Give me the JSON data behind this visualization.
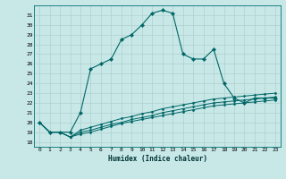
{
  "xlabel": "Humidex (Indice chaleur)",
  "bg_color": "#c8e8e8",
  "grid_color": "#b0d0d0",
  "line_color": "#006666",
  "xlim": [
    -0.5,
    23.5
  ],
  "ylim": [
    17.5,
    32
  ],
  "yticks": [
    18,
    19,
    20,
    21,
    22,
    23,
    24,
    25,
    26,
    27,
    28,
    29,
    30,
    31
  ],
  "xticks": [
    0,
    1,
    2,
    3,
    4,
    5,
    6,
    7,
    8,
    9,
    10,
    11,
    12,
    13,
    14,
    15,
    16,
    17,
    18,
    19,
    20,
    21,
    22,
    23
  ],
  "series_main": {
    "x": [
      0,
      1,
      2,
      3,
      4,
      5,
      6,
      7,
      8,
      9,
      10,
      11,
      12,
      13,
      14,
      15,
      16,
      17,
      18,
      19,
      20,
      21,
      22,
      23
    ],
    "y": [
      20.0,
      19.0,
      19.0,
      19.0,
      21.0,
      25.5,
      26.0,
      26.5,
      28.5,
      29.0,
      30.0,
      31.2,
      31.5,
      31.2,
      27.0,
      26.5,
      26.5,
      27.5,
      24.0,
      22.5,
      22.0,
      22.5,
      22.5,
      22.5
    ]
  },
  "series_flat": [
    {
      "x": [
        0,
        1,
        2,
        3,
        4,
        5,
        6,
        7,
        8,
        9,
        10,
        11,
        12,
        13,
        14,
        15,
        16,
        17,
        18,
        19,
        20,
        21,
        22,
        23
      ],
      "y": [
        20.0,
        19.0,
        19.0,
        18.5,
        19.2,
        19.5,
        19.8,
        20.1,
        20.4,
        20.6,
        20.9,
        21.1,
        21.4,
        21.6,
        21.8,
        22.0,
        22.2,
        22.4,
        22.5,
        22.6,
        22.7,
        22.8,
        22.9,
        23.0
      ]
    },
    {
      "x": [
        0,
        1,
        2,
        3,
        4,
        5,
        6,
        7,
        8,
        9,
        10,
        11,
        12,
        13,
        14,
        15,
        16,
        17,
        18,
        19,
        20,
        21,
        22,
        23
      ],
      "y": [
        20.0,
        19.0,
        19.0,
        18.5,
        19.0,
        19.2,
        19.5,
        19.8,
        20.0,
        20.3,
        20.5,
        20.7,
        21.0,
        21.2,
        21.4,
        21.6,
        21.8,
        22.0,
        22.1,
        22.2,
        22.3,
        22.4,
        22.5,
        22.6
      ]
    },
    {
      "x": [
        0,
        1,
        2,
        3,
        4,
        5,
        6,
        7,
        8,
        9,
        10,
        11,
        12,
        13,
        14,
        15,
        16,
        17,
        18,
        19,
        20,
        21,
        22,
        23
      ],
      "y": [
        20.0,
        19.0,
        19.0,
        18.5,
        18.8,
        19.0,
        19.3,
        19.6,
        19.9,
        20.1,
        20.3,
        20.5,
        20.7,
        20.9,
        21.1,
        21.3,
        21.5,
        21.7,
        21.8,
        21.9,
        22.0,
        22.1,
        22.2,
        22.3
      ]
    }
  ]
}
